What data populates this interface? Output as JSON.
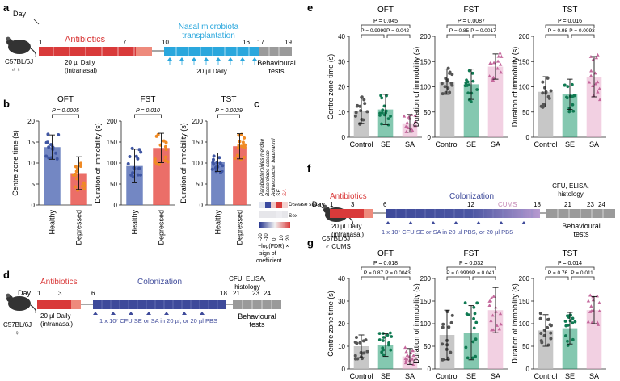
{
  "panel_letters": {
    "a": "a",
    "b": "b",
    "c": "c",
    "d": "d",
    "e": "e",
    "f": "f",
    "g": "g"
  },
  "colors": {
    "antibiotics_red": "#d93a3a",
    "nasal_blue": "#2aa7dd",
    "colonization_navy": "#3e4a9a",
    "cums_pink": "#e8b6d4",
    "healthy_blue": "#5b72b8",
    "depressed_red": "#e8554e",
    "orange_pt": "#f08a24",
    "control_grey": "#bdbdbd",
    "se_green": "#1f9a6f",
    "sa_pink": "#e8aacb"
  },
  "panel_a": {
    "day_label": "Day",
    "day_ticks": [
      "1",
      "7",
      "10",
      "16",
      "17",
      "19"
    ],
    "antibiotics": "Antibiotics",
    "antibiotic_dose": "20 µl Daily",
    "antibiotic_route": "(intranasal)",
    "transplant_line1": "Nasal microbiota",
    "transplant_line2": "transplantation",
    "transplant_dose": "20 µl Daily",
    "behaviour_line1": "Behavioural",
    "behaviour_line2": "tests",
    "strain": "C57BL/6J",
    "sex": "♂♀"
  },
  "panel_b": {
    "charts": [
      {
        "title": "OFT",
        "ylabel": "Centre zone time (s)",
        "p": "P = 0.0005",
        "yticks": [
          "0",
          "5",
          "10",
          "15",
          "20"
        ],
        "categories": [
          "Healthy",
          "Depressed"
        ]
      },
      {
        "title": "FST",
        "ylabel": "Duration of immobility (s)",
        "p": "P = 0.010",
        "yticks": [
          "0",
          "50",
          "100",
          "150",
          "200"
        ],
        "categories": [
          "Healthy",
          "Depressed"
        ]
      },
      {
        "title": "TST",
        "ylabel": "Duration of immobility (s)",
        "p": "P = 0.0029",
        "yticks": [
          "0",
          "50",
          "100",
          "150",
          "200"
        ],
        "categories": [
          "Healthy",
          "Depressed"
        ]
      }
    ]
  },
  "panel_c": {
    "taxa": [
      "Parabacteroides merdae",
      "Bacteroides caccae",
      "Acinetobacter baumannii",
      "SE",
      "SA"
    ],
    "row_labels": [
      "Disease state",
      "Sex"
    ],
    "scale_ticks": [
      "-20",
      "-10",
      "0",
      "10",
      "20"
    ],
    "caption_line1": "−log(FDR) ×",
    "caption_line2": "sign of",
    "caption_line3": "coefficient"
  },
  "panel_d": {
    "day_label": "Day",
    "day_ticks": [
      "1",
      "3",
      "6",
      "18",
      "21",
      "23",
      "24"
    ],
    "antibiotics": "Antibiotics",
    "antibiotic_dose": "20 µl Daily",
    "antibiotic_route": "(intranasal)",
    "colonization": "Colonization",
    "colonization_dose": "1 x 10⁷ CFU SE or SA in 20 µl, or 20 µl PBS",
    "endpoint_line1": "CFU, ELISA,",
    "endpoint_line2": "histology",
    "behaviour_line1": "Behavioural",
    "behaviour_line2": "tests",
    "strain": "C57BL/6J",
    "sex": "♀"
  },
  "panel_e": {
    "charts": [
      {
        "title": "OFT",
        "ylabel": "Centre zone time (s)",
        "p_top": "P = 0.045",
        "p_left": "P = 0.9999",
        "p_right": "P = 0.042",
        "yticks": [
          "0",
          "10",
          "20",
          "30",
          "40"
        ],
        "categories": [
          "Control",
          "SE",
          "SA"
        ]
      },
      {
        "title": "FST",
        "ylabel": "Duration of immobility (s)",
        "p_top": "P = 0.0087",
        "p_left": "P = 0.85",
        "p_right": "P = 0.0017",
        "yticks": [
          "0",
          "50",
          "100",
          "150",
          "200"
        ],
        "categories": [
          "Control",
          "SE",
          "SA"
        ]
      },
      {
        "title": "TST",
        "ylabel": "Duration of immobility (s)",
        "p_top": "P = 0.016",
        "p_left": "P = 0.98",
        "p_right": "P = 0.0093",
        "yticks": [
          "0",
          "50",
          "100",
          "150",
          "200"
        ],
        "categories": [
          "Control",
          "SE",
          "SA"
        ]
      }
    ]
  },
  "panel_f": {
    "day_label": "Day",
    "day_ticks": [
      "1",
      "3",
      "6",
      "12",
      "18",
      "21",
      "23",
      "24"
    ],
    "antibiotics": "Antibiotics",
    "antibiotic_dose": "20 µl Daily",
    "antibiotic_route": "(intranasal)",
    "colonization": "Colonization",
    "cums": "CUMS",
    "colonization_dose": "1 x 10⁷ CFU SE or SA in 20 µl PBS, or 20 µl PBS",
    "endpoint_line1": "CFU, ELISA,",
    "endpoint_line2": "histology",
    "behaviour_line1": "Behavioural",
    "behaviour_line2": "tests",
    "strain": "C57BL/6J",
    "sex": "♂ CUMS"
  },
  "panel_g": {
    "charts": [
      {
        "title": "OFT",
        "ylabel": "Centre zone time (s)",
        "p_top": "P = 0.018",
        "p_left": "P = 0.87",
        "p_right": "P = 0.0043",
        "yticks": [
          "0",
          "10",
          "20",
          "30",
          "40"
        ],
        "categories": [
          "Control",
          "SE",
          "SA"
        ]
      },
      {
        "title": "FST",
        "ylabel": "Duration of immobility (s)",
        "p_top": "P = 0.032",
        "p_left": "P = 0.9999",
        "p_right": "P = 0.041",
        "yticks": [
          "0",
          "50",
          "100",
          "150",
          "200"
        ],
        "categories": [
          "Control",
          "SE",
          "SA"
        ]
      },
      {
        "title": "TST",
        "ylabel": "Duration of immobility (s)",
        "p_top": "P = 0.014",
        "p_left": "P = 0.76",
        "p_right": "P = 0.011",
        "yticks": [
          "0",
          "50",
          "100",
          "150",
          "200"
        ],
        "categories": [
          "Control",
          "SE",
          "SA"
        ]
      }
    ]
  },
  "chart_data": [
    {
      "panel": "b",
      "type": "bar",
      "title": "OFT",
      "ylabel": "Centre zone time (s)",
      "categories": [
        "Healthy",
        "Depressed"
      ],
      "values": [
        13.8,
        7.6
      ],
      "errors": [
        2.9,
        3.9
      ],
      "ylim": [
        0,
        20
      ]
    },
    {
      "panel": "b",
      "type": "bar",
      "title": "FST",
      "ylabel": "Duration of immobility (s)",
      "categories": [
        "Healthy",
        "Depressed"
      ],
      "values": [
        93,
        136
      ],
      "errors": [
        40,
        35
      ],
      "ylim": [
        0,
        200
      ]
    },
    {
      "panel": "b",
      "type": "bar",
      "title": "TST",
      "ylabel": "Duration of immobility (s)",
      "categories": [
        "Healthy",
        "Depressed"
      ],
      "values": [
        102,
        140
      ],
      "errors": [
        22,
        30
      ],
      "ylim": [
        0,
        200
      ]
    },
    {
      "panel": "e",
      "type": "bar",
      "title": "OFT",
      "ylabel": "Centre zone time (s)",
      "categories": [
        "Control",
        "SE",
        "SA"
      ],
      "values": [
        10.5,
        11,
        5.5
      ],
      "errors": [
        5,
        6,
        3.5
      ],
      "ylim": [
        0,
        40
      ]
    },
    {
      "panel": "e",
      "type": "bar",
      "title": "FST",
      "ylabel": "Duration of immobility (s)",
      "categories": [
        "Control",
        "SE",
        "SA"
      ],
      "values": [
        110,
        105,
        140
      ],
      "errors": [
        25,
        30,
        25
      ],
      "ylim": [
        0,
        200
      ]
    },
    {
      "panel": "e",
      "type": "bar",
      "title": "TST",
      "ylabel": "Duration of immobility (s)",
      "categories": [
        "Control",
        "SE",
        "SA"
      ],
      "values": [
        90,
        85,
        120
      ],
      "errors": [
        30,
        30,
        40
      ],
      "ylim": [
        0,
        200
      ]
    },
    {
      "panel": "g",
      "type": "bar",
      "title": "OFT",
      "ylabel": "Centre zone time (s)",
      "categories": [
        "Control",
        "SE",
        "SA"
      ],
      "values": [
        10,
        10.5,
        5.5
      ],
      "errors": [
        5,
        5,
        3.5
      ],
      "ylim": [
        0,
        40
      ]
    },
    {
      "panel": "g",
      "type": "bar",
      "title": "FST",
      "ylabel": "Duration of immobility (s)",
      "categories": [
        "Control",
        "SE",
        "SA"
      ],
      "values": [
        75,
        80,
        130
      ],
      "errors": [
        55,
        60,
        50
      ],
      "ylim": [
        0,
        200
      ]
    },
    {
      "panel": "g",
      "type": "bar",
      "title": "TST",
      "ylabel": "Duration of immobility (s)",
      "categories": [
        "Control",
        "SE",
        "SA"
      ],
      "values": [
        85,
        90,
        130
      ],
      "errors": [
        35,
        35,
        30
      ],
      "ylim": [
        0,
        200
      ]
    }
  ]
}
